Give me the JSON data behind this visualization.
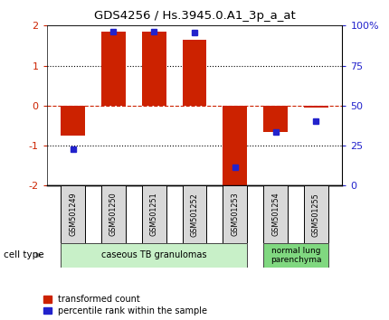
{
  "title": "GDS4256 / Hs.3945.0.A1_3p_a_at",
  "samples": [
    "GSM501249",
    "GSM501250",
    "GSM501251",
    "GSM501252",
    "GSM501253",
    "GSM501254",
    "GSM501255"
  ],
  "red_values": [
    -0.75,
    1.85,
    1.85,
    1.65,
    -2.05,
    -0.65,
    -0.05
  ],
  "blue_values": [
    -1.1,
    1.85,
    1.85,
    1.82,
    -1.55,
    -0.65,
    -0.38
  ],
  "ylim": [
    -2,
    2
  ],
  "yticks": [
    -2,
    -1,
    0,
    1,
    2
  ],
  "y2ticks": [
    0,
    25,
    50,
    75,
    100
  ],
  "bar_width": 0.6,
  "red_color": "#cc2200",
  "blue_color": "#2222cc",
  "sample_box_color": "#d8d8d8",
  "group1_label": "caseous TB granulomas",
  "group2_label": "normal lung\nparenchyma",
  "group1_indices": [
    0,
    1,
    2,
    3,
    4
  ],
  "group2_indices": [
    5,
    6
  ],
  "cell_type_label": "cell type",
  "legend_red": "transformed count",
  "legend_blue": "percentile rank within the sample",
  "group1_color": "#c8f0c8",
  "group2_color": "#80d880"
}
